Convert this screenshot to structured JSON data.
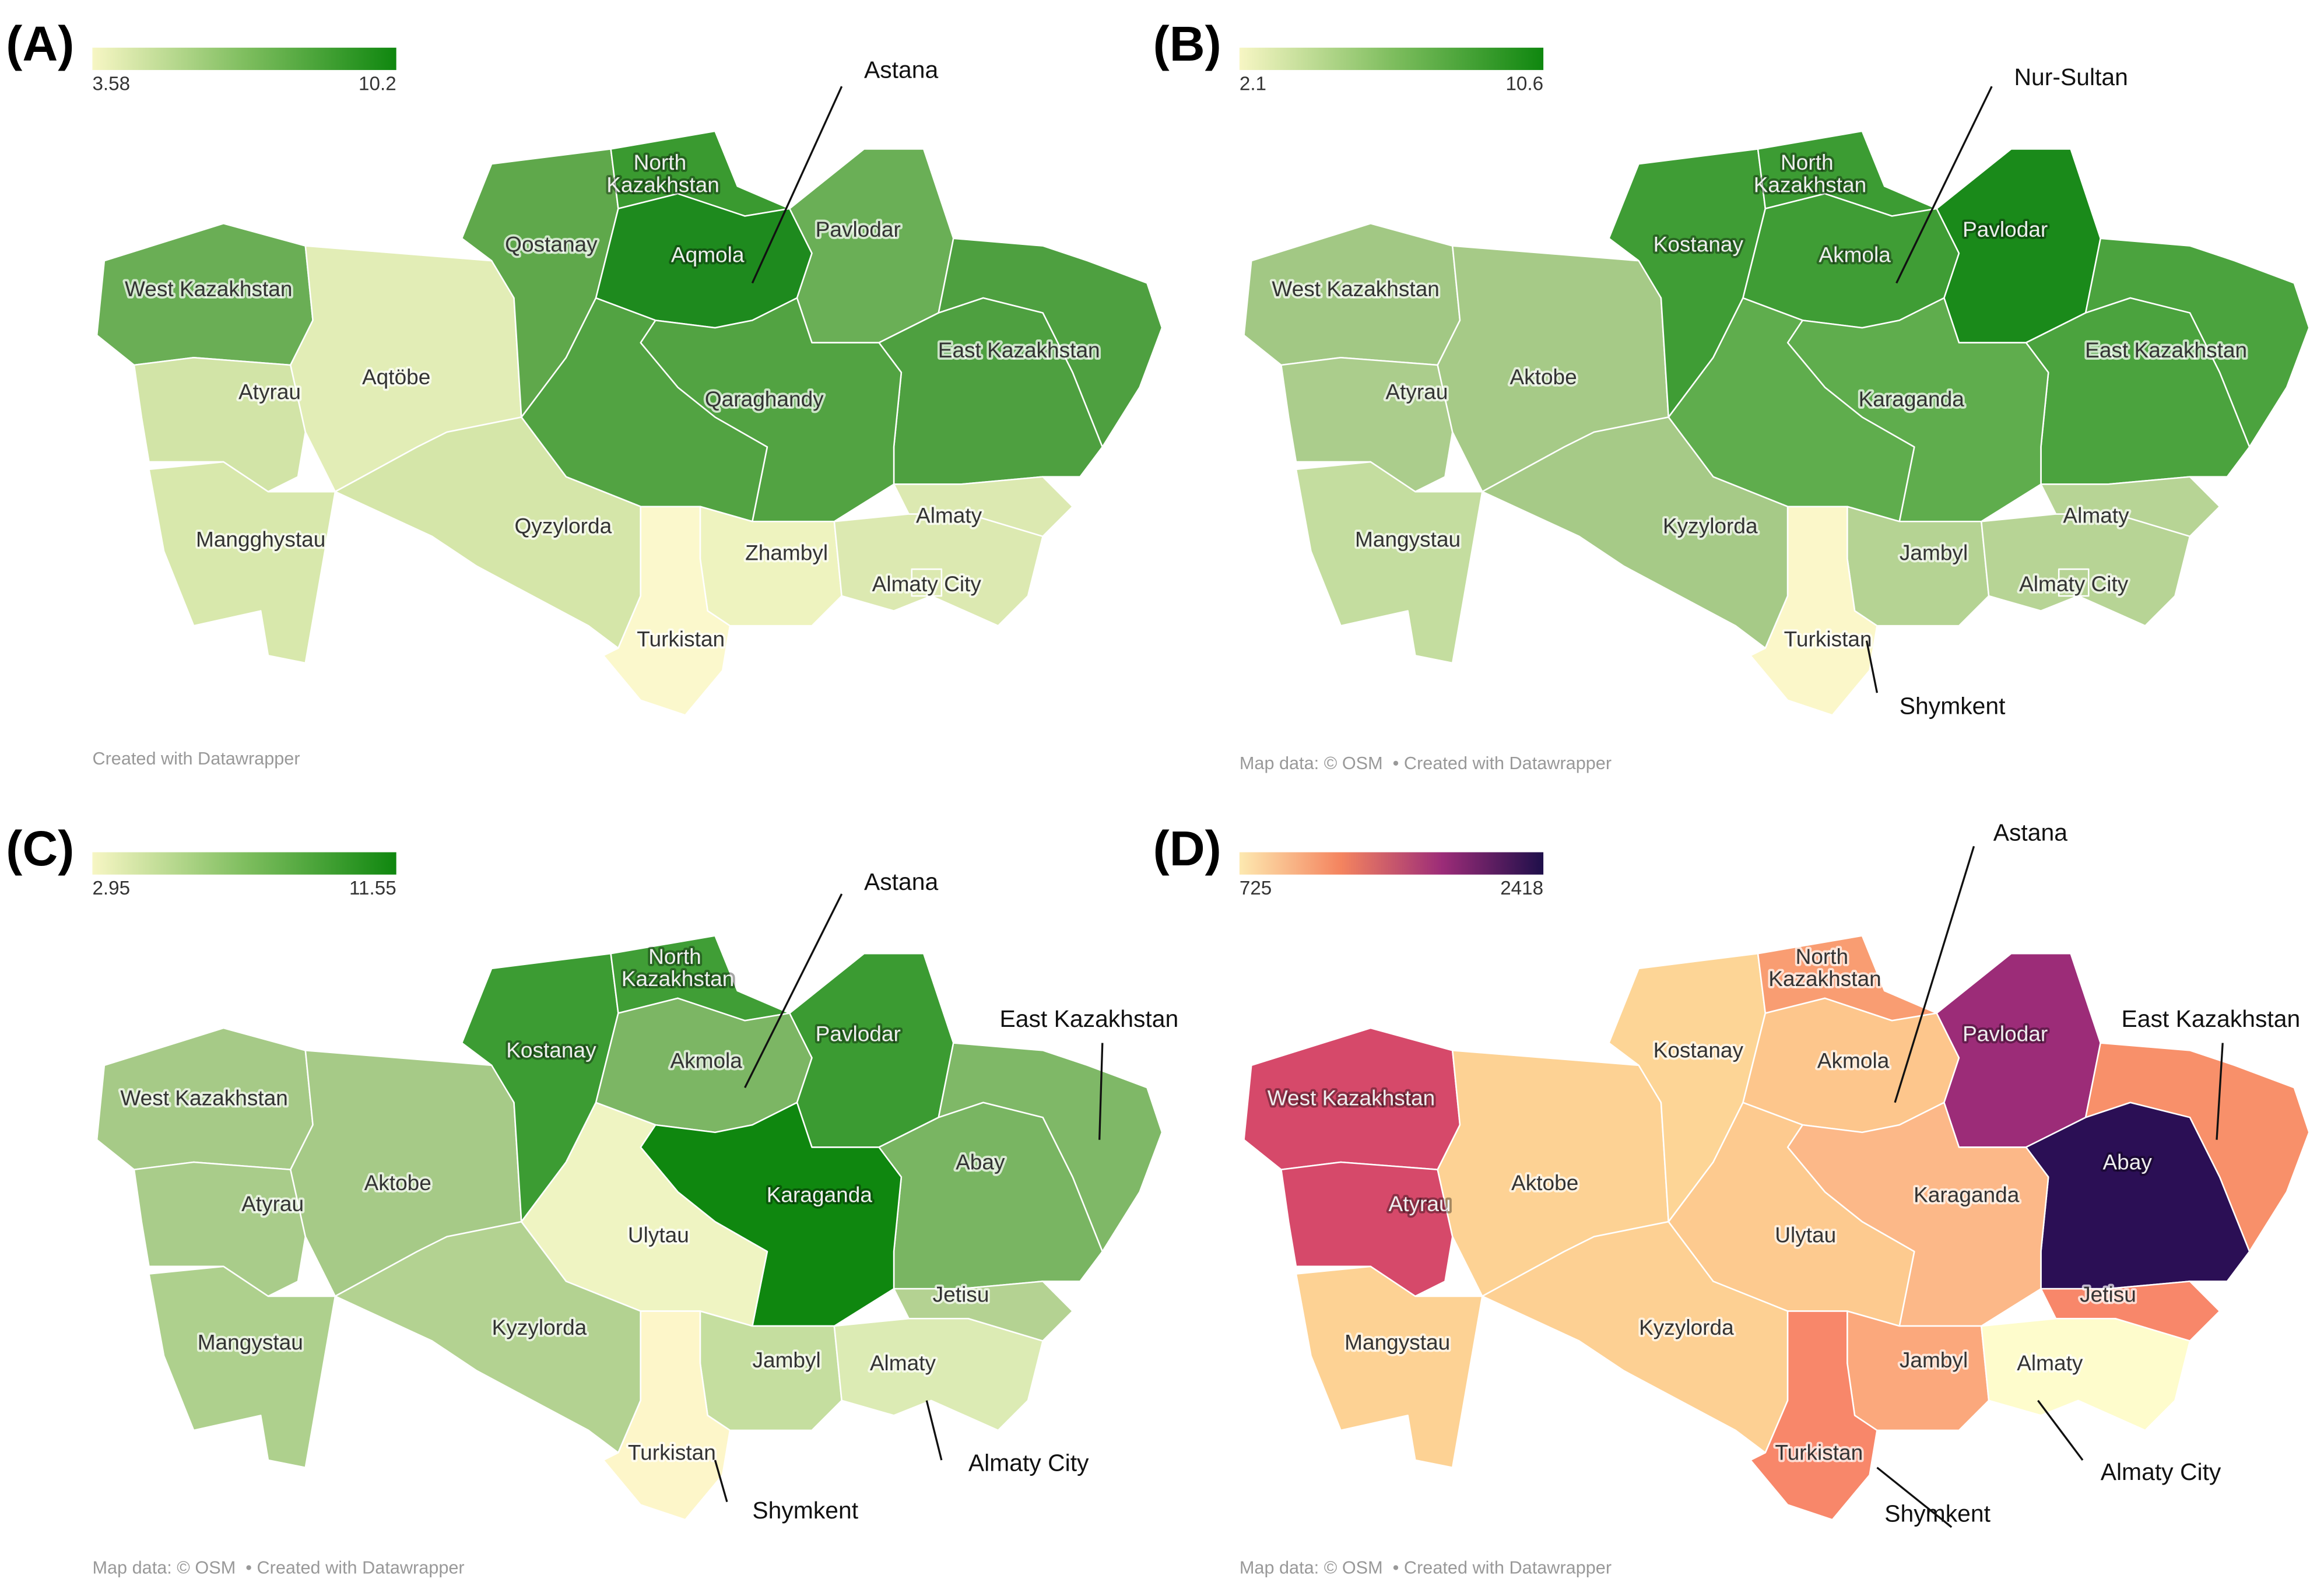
{
  "panels": [
    {
      "letter": "(A)",
      "legend": {
        "min": 3.58,
        "max": 10.2,
        "colors": [
          "#f7f6c4",
          "#7fbe5f",
          "#0f870f"
        ]
      },
      "regions": [
        {
          "name": "West Kazakhstan",
          "color": "#6aae55"
        },
        {
          "name": "Atyrau",
          "color": "#d2e4a7"
        },
        {
          "name": "Mangghystau",
          "color": "#d8e8ac"
        },
        {
          "name": "Aqtöbe",
          "color": "#e2edb6"
        },
        {
          "name": "Qostanay",
          "color": "#5fa84b"
        },
        {
          "name": "North Kazakhstan",
          "color": "#3a9a30"
        },
        {
          "name": "Aqmola",
          "color": "#1e8a1e"
        },
        {
          "name": "Pavlodar",
          "color": "#6aaf56"
        },
        {
          "name": "East Kazakhstan",
          "color": "#4ea040"
        },
        {
          "name": "Qaraghandy",
          "color": "#52a342"
        },
        {
          "name": "Qyzylorda",
          "color": "#d5e6a9"
        },
        {
          "name": "Zhambyl",
          "color": "#eef3bf"
        },
        {
          "name": "Turkistan",
          "color": "#fbf8cc"
        },
        {
          "name": "Almaty",
          "color": "#dce9b1"
        },
        {
          "name": "Almaty City",
          "color": "#dce9b1"
        }
      ],
      "callouts": [
        "Astana"
      ],
      "credit": "Created with Datawrapper"
    },
    {
      "letter": "(B)",
      "legend": {
        "min": 2.1,
        "max": 10.6,
        "colors": [
          "#f7f6c4",
          "#7fbe5f",
          "#0f870f"
        ]
      },
      "regions": [
        {
          "name": "West Kazakhstan",
          "color": "#a2c884"
        },
        {
          "name": "Atyrau",
          "color": "#abcd8c"
        },
        {
          "name": "Mangystau",
          "color": "#c4dd9f"
        },
        {
          "name": "Aktobe",
          "color": "#a6ca87"
        },
        {
          "name": "Kostanay",
          "color": "#3f9d35"
        },
        {
          "name": "North Kazakhstan",
          "color": "#3c9c33"
        },
        {
          "name": "Akmola",
          "color": "#3f9d35"
        },
        {
          "name": "Pavlodar",
          "color": "#1a8a1a"
        },
        {
          "name": "East Kazakhstan",
          "color": "#4ba33e"
        },
        {
          "name": "Karaganda",
          "color": "#5fad4d"
        },
        {
          "name": "Kyzylorda",
          "color": "#a6ca87"
        },
        {
          "name": "Jambyl",
          "color": "#b5d393"
        },
        {
          "name": "Turkistan",
          "color": "#fbf7c9"
        },
        {
          "name": "Almaty",
          "color": "#b7d495"
        },
        {
          "name": "Almaty City",
          "color": "#b7d495"
        }
      ],
      "callouts": [
        "Nur-Sultan",
        "Shymkent"
      ],
      "credit": "Map data: © OSM  • Created with Datawrapper"
    },
    {
      "letter": "(C)",
      "legend": {
        "min": 2.95,
        "max": 11.55,
        "colors": [
          "#f7f6c4",
          "#7fbe5f",
          "#0f870f"
        ]
      },
      "regions": [
        {
          "name": "West Kazakhstan",
          "color": "#a6ca87"
        },
        {
          "name": "Atyrau",
          "color": "#a9cc8a"
        },
        {
          "name": "Mangystau",
          "color": "#aed08d"
        },
        {
          "name": "Aktobe",
          "color": "#a6ca87"
        },
        {
          "name": "Kostanay",
          "color": "#3c9c33"
        },
        {
          "name": "North Kazakhstan",
          "color": "#409e36"
        },
        {
          "name": "Akmola",
          "color": "#7cb664"
        },
        {
          "name": "Pavlodar",
          "color": "#3b9b32"
        },
        {
          "name": "East Kazakhstan",
          "color": "#7fb867"
        },
        {
          "name": "Abay",
          "color": "#79b562"
        },
        {
          "name": "Karaganda",
          "color": "#0f870f"
        },
        {
          "name": "Ulytau",
          "color": "#eff4c2"
        },
        {
          "name": "Kyzylorda",
          "color": "#b3d291"
        },
        {
          "name": "Jambyl",
          "color": "#c5de9f"
        },
        {
          "name": "Turkistan",
          "color": "#fdf6c9"
        },
        {
          "name": "Almaty",
          "color": "#dcebb4"
        },
        {
          "name": "Jetisu",
          "color": "#b4d292"
        }
      ],
      "callouts": [
        "Astana",
        "Almaty City",
        "Shymkent"
      ],
      "credit": "Map data: © OSM  • Created with Datawrapper"
    },
    {
      "letter": "(D)",
      "legend": {
        "min": 725,
        "max": 2418,
        "colors": [
          "#fde9b0",
          "#f4845f",
          "#9c2c78",
          "#1e0f4a"
        ]
      },
      "regions": [
        {
          "name": "West Kazakhstan",
          "color": "#d6496a"
        },
        {
          "name": "Atyrau",
          "color": "#d6496a"
        },
        {
          "name": "Mangystau",
          "color": "#fdd294"
        },
        {
          "name": "Aktobe",
          "color": "#fdd294"
        },
        {
          "name": "Kostanay",
          "color": "#fdd596"
        },
        {
          "name": "North Kazakhstan",
          "color": "#f99d72"
        },
        {
          "name": "Akmola",
          "color": "#fdc68c"
        },
        {
          "name": "Pavlodar",
          "color": "#9c2c78"
        },
        {
          "name": "East Kazakhstan",
          "color": "#f8906a"
        },
        {
          "name": "Abay",
          "color": "#2b0f55"
        },
        {
          "name": "Karaganda",
          "color": "#fcb888"
        },
        {
          "name": "Ulytau",
          "color": "#fdca8f"
        },
        {
          "name": "Kyzylorda",
          "color": "#fdd093"
        },
        {
          "name": "Jambyl",
          "color": "#fba87c"
        },
        {
          "name": "Turkistan",
          "color": "#f8876a"
        },
        {
          "name": "Almaty",
          "color": "#fefccc"
        },
        {
          "name": "Jetisu",
          "color": "#f8876a"
        }
      ],
      "callouts": [
        "Astana",
        "Almaty City",
        "Shymkent"
      ],
      "credit": "Map data: © OSM  • Created with Datawrapper"
    }
  ]
}
